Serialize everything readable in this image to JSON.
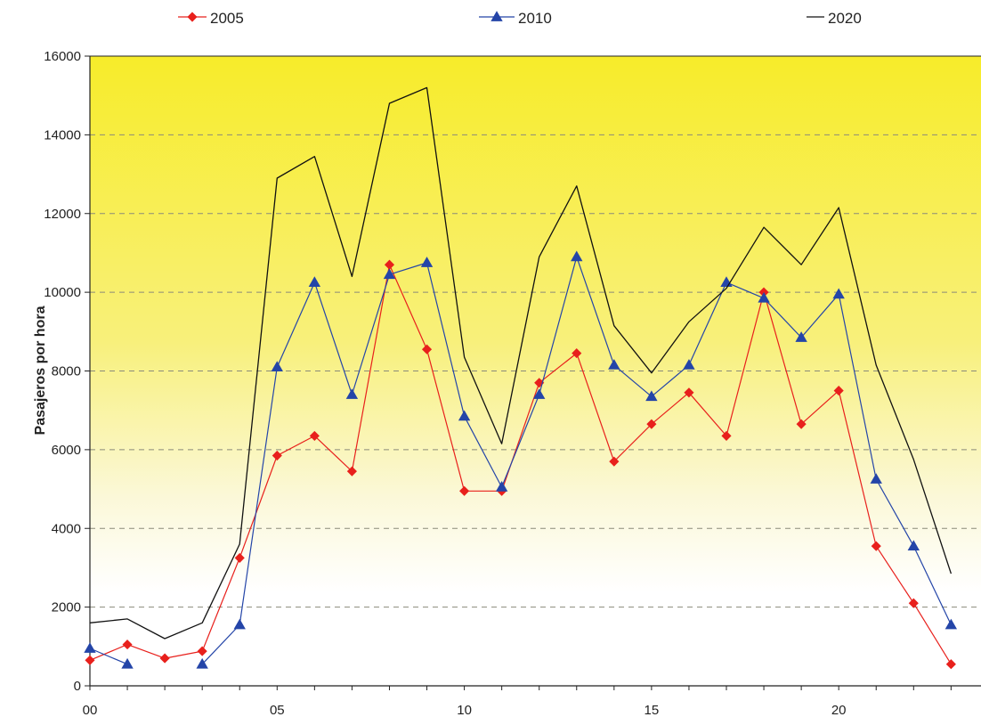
{
  "chart_data": {
    "type": "line",
    "title": "",
    "xlabel": "",
    "ylabel": "Pasajeros por hora",
    "xlim": [
      0,
      23.8
    ],
    "ylim": [
      0,
      16000
    ],
    "x_ticks": [
      0,
      5,
      10,
      15,
      20
    ],
    "x_tick_labels": [
      "00",
      "05",
      "10",
      "15",
      "20"
    ],
    "y_ticks": [
      0,
      2000,
      4000,
      6000,
      8000,
      10000,
      12000,
      14000,
      16000
    ],
    "y_tick_labels": [
      "0",
      "2000",
      "4000",
      "6000",
      "8000",
      "10000",
      "12000",
      "14000",
      "16000"
    ],
    "grid": "horizontal-dashed",
    "legend": "top",
    "background": "yellow-to-white-gradient",
    "series": [
      {
        "name": "2005",
        "color": "#e8201c",
        "marker": "diamond",
        "segments": [
          [
            [
              0,
              650
            ],
            [
              1,
              1050
            ],
            [
              2,
              700
            ],
            [
              3,
              880
            ],
            [
              4,
              3250
            ],
            [
              5,
              5850
            ],
            [
              6,
              6350
            ],
            [
              7,
              5450
            ],
            [
              8,
              10700
            ],
            [
              9,
              8550
            ],
            [
              10,
              4950
            ],
            [
              11,
              4950
            ],
            [
              12,
              7700
            ],
            [
              13,
              8450
            ],
            [
              14,
              5700
            ],
            [
              15,
              6650
            ],
            [
              16,
              7450
            ],
            [
              17,
              6350
            ],
            [
              18,
              10000
            ],
            [
              19,
              6650
            ],
            [
              20,
              7500
            ],
            [
              21,
              3550
            ],
            [
              22,
              2100
            ],
            [
              23,
              550
            ]
          ]
        ]
      },
      {
        "name": "2010",
        "color": "#2445a8",
        "marker": "triangle",
        "segments": [
          [
            [
              0,
              950
            ],
            [
              1,
              550
            ]
          ],
          [
            [
              3,
              550
            ],
            [
              4,
              1550
            ],
            [
              5,
              8100
            ],
            [
              6,
              10250
            ],
            [
              7,
              7400
            ],
            [
              8,
              10450
            ],
            [
              9,
              10750
            ],
            [
              10,
              6850
            ],
            [
              11,
              5050
            ],
            [
              12,
              7400
            ],
            [
              13,
              10900
            ],
            [
              14,
              8150
            ],
            [
              15,
              7350
            ],
            [
              16,
              8150
            ],
            [
              17,
              10250
            ],
            [
              18,
              9850
            ],
            [
              19,
              8850
            ],
            [
              20,
              9950
            ],
            [
              21,
              5250
            ],
            [
              22,
              3550
            ],
            [
              23,
              1550
            ]
          ]
        ]
      },
      {
        "name": "2020",
        "color": "#111111",
        "marker": "none",
        "segments": [
          [
            [
              0,
              1600
            ],
            [
              1,
              1700
            ],
            [
              2,
              1200
            ],
            [
              3,
              1600
            ],
            [
              4,
              3600
            ],
            [
              5,
              12900
            ],
            [
              6,
              13450
            ],
            [
              7,
              10400
            ],
            [
              8,
              14800
            ],
            [
              9,
              15200
            ],
            [
              10,
              8350
            ],
            [
              11,
              6150
            ],
            [
              12,
              10900
            ],
            [
              13,
              12700
            ],
            [
              14,
              9150
            ],
            [
              15,
              7950
            ],
            [
              16,
              9250
            ],
            [
              17,
              10100
            ],
            [
              18,
              11650
            ],
            [
              19,
              10700
            ],
            [
              20,
              12150
            ],
            [
              21,
              8150
            ],
            [
              22,
              5750
            ],
            [
              23,
              2850
            ]
          ]
        ]
      }
    ]
  }
}
